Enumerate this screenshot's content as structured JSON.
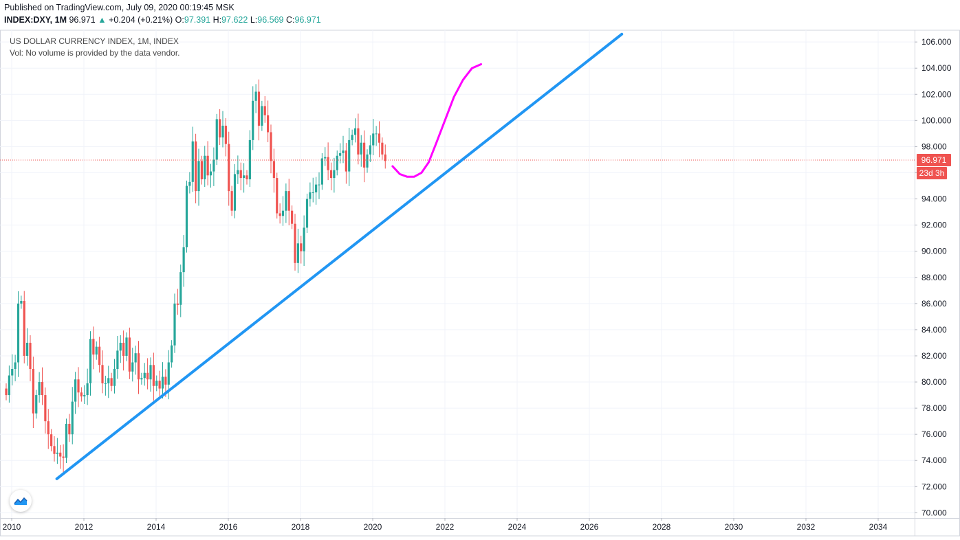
{
  "header": {
    "published": "Published on TradingView.com, July 09, 2020 00:19:45 MSK",
    "symbol": "INDEX:DXY, 1M",
    "last": "96.971",
    "change": "+0.204 (+0.21%)",
    "o_label": "O:",
    "o_value": "97.391",
    "h_label": "H:",
    "h_value": "97.622",
    "l_label": "L:",
    "l_value": "96.569",
    "c_label": "C:",
    "c_value": "96.971",
    "up_arrow": "▲"
  },
  "legend": {
    "title": "US DOLLAR CURRENCY INDEX, 1M, INDEX",
    "volume_note": "Vol: No volume is provided by the data vendor."
  },
  "price_tag": {
    "value": "96.971",
    "countdown": "23d 3h"
  },
  "colors": {
    "up": "#26a69a",
    "down": "#ef5350",
    "trendline": "#2196f3",
    "projection": "#ff00ff",
    "price_line": "#ef5350",
    "grid": "#f0f3fa"
  },
  "icons": {
    "logo": "tradingview-logo-icon"
  },
  "chart_data": {
    "type": "candlestick",
    "interval": "1M",
    "x_ticks": [
      "2010",
      "2012",
      "2014",
      "2016",
      "2018",
      "2020",
      "2022",
      "2024",
      "2026",
      "2028",
      "2030",
      "2032",
      "2034"
    ],
    "y_ticks": [
      "70.000",
      "72.000",
      "74.000",
      "76.000",
      "78.000",
      "80.000",
      "82.000",
      "84.000",
      "86.000",
      "88.000",
      "90.000",
      "92.000",
      "94.000",
      "96.000",
      "98.000",
      "100.000",
      "102.000",
      "104.000",
      "106.000"
    ],
    "ylim": [
      70,
      106
    ],
    "xlim": [
      2010.0,
      2035.0
    ],
    "current_price": 96.971,
    "candles_note": "approximate monthly closes read from chart",
    "closes": [
      79.0,
      80.5,
      81.0,
      81.5,
      86.0,
      86.2,
      82.0,
      83.0,
      81.0,
      77.6,
      79.0,
      80.0,
      79.0,
      77.0,
      76.0,
      75.1,
      74.5,
      74.6,
      74.3,
      74.2,
      76.8,
      76.0,
      78.5,
      80.2,
      79.2,
      78.9,
      79.0,
      79.9,
      83.3,
      82.1,
      82.7,
      81.3,
      79.9,
      79.9,
      80.3,
      79.7,
      81.0,
      82.4,
      83.0,
      82.0,
      83.4,
      80.8,
      81.5,
      82.2,
      80.2,
      80.3,
      80.7,
      80.2,
      81.3,
      79.7,
      80.1,
      79.5,
      80.4,
      79.8,
      81.5,
      82.8,
      86.0,
      85.9,
      88.4,
      90.3,
      95.0,
      95.3,
      98.4,
      94.6,
      96.9,
      95.5,
      97.3,
      95.8,
      96.1,
      97.0,
      100.1,
      98.7,
      99.6,
      98.2,
      94.6,
      93.1,
      95.9,
      96.2,
      95.6,
      95.8,
      95.5,
      98.5,
      101.5,
      102.2,
      99.6,
      101.1,
      100.4,
      99.1,
      96.9,
      95.6,
      92.9,
      92.7,
      93.1,
      94.6,
      93.1,
      92.1,
      89.1,
      90.6,
      90.0,
      91.8,
      94.0,
      94.5,
      94.5,
      95.1,
      95.1,
      97.1,
      97.2,
      96.2,
      95.6,
      96.2,
      97.3,
      97.5,
      97.7,
      96.1,
      98.5,
      98.9,
      99.4,
      97.4,
      98.3,
      96.4,
      97.4,
      98.1,
      99.0,
      99.0,
      98.3,
      97.4,
      96.9
    ],
    "trendline": {
      "from": {
        "x": 2011.25,
        "y": 72.6
      },
      "to": {
        "x": 2026.9,
        "y": 106.6
      }
    },
    "projection": {
      "points": [
        [
          2020.55,
          96.5
        ],
        [
          2020.75,
          95.9
        ],
        [
          2020.95,
          95.7
        ],
        [
          2021.15,
          95.7
        ],
        [
          2021.35,
          96.0
        ],
        [
          2021.55,
          96.8
        ],
        [
          2021.75,
          98.2
        ],
        [
          2022.0,
          100.0
        ],
        [
          2022.25,
          101.8
        ],
        [
          2022.5,
          103.1
        ],
        [
          2022.75,
          104.0
        ],
        [
          2023.0,
          104.3
        ]
      ]
    }
  }
}
